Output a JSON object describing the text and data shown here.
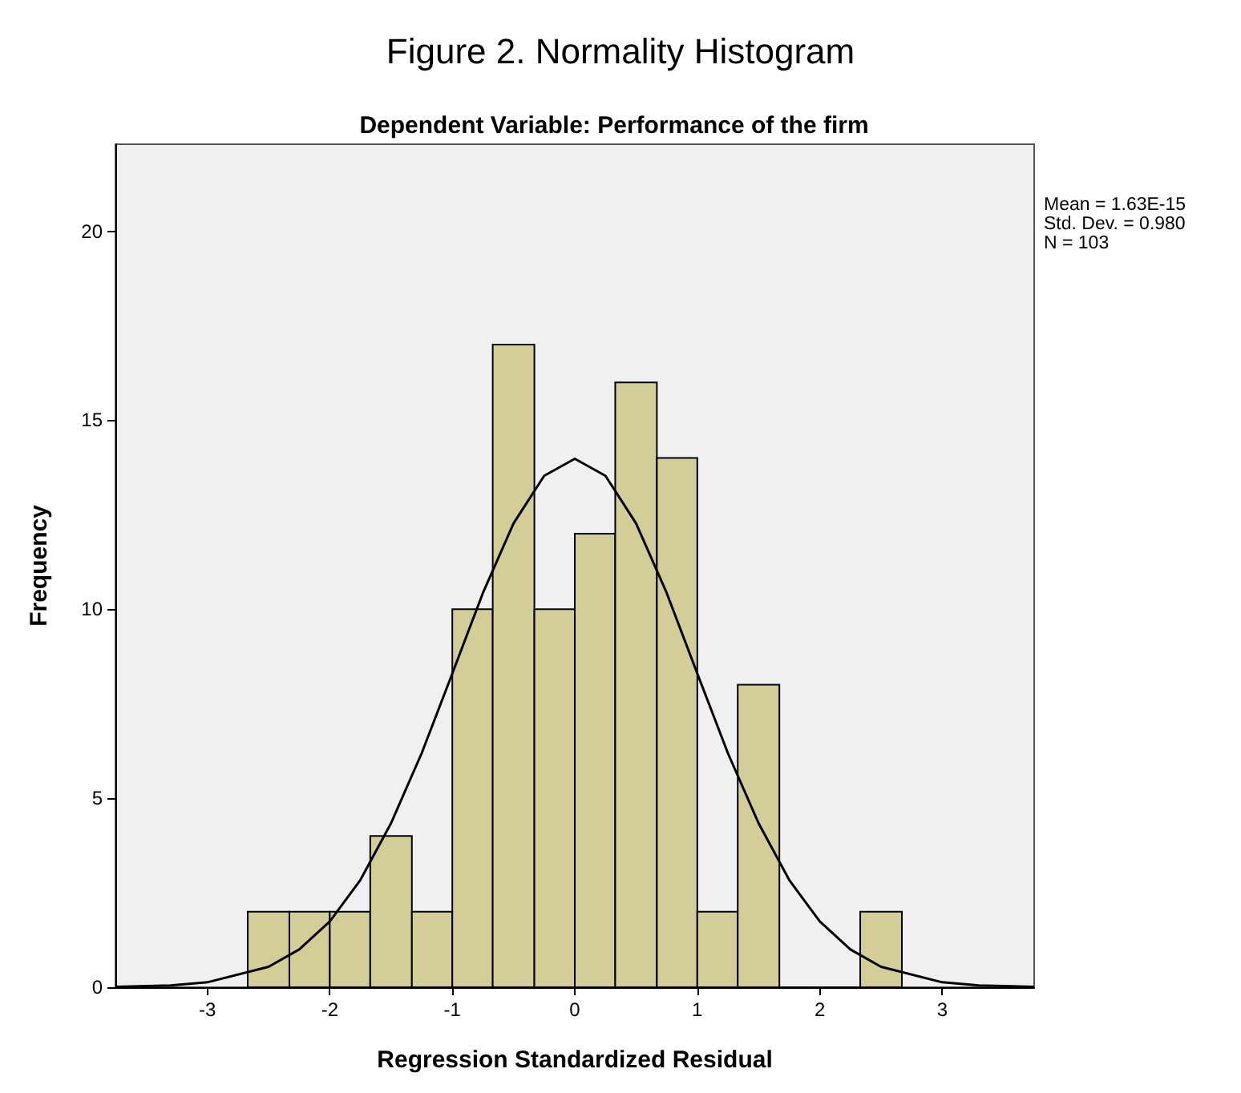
{
  "chart_data": {
    "type": "histogram",
    "title": "Figure 2. Normality Histogram",
    "subtitle": "Dependent Variable: Performance of the firm",
    "xlabel": "Regression Standardized Residual",
    "ylabel": "Frequency",
    "bins": [
      -2.67,
      -2.33,
      -2,
      -1.67,
      -1.33,
      -1,
      -0.67,
      -0.33,
      0,
      0.33,
      0.67,
      1,
      1.33,
      1.67,
      2.33,
      2.67
    ],
    "values": [
      2,
      2,
      2,
      4,
      2,
      10,
      17,
      10,
      12,
      16,
      14,
      2,
      8,
      0,
      2
    ],
    "color": "#d3ce97",
    "series": [
      {
        "type": "line",
        "color": "#000000",
        "x": [
          -3.75,
          -3.3,
          -3,
          -2.5,
          -2.25,
          -2,
          -1.75,
          -1.5,
          -1.25,
          -1,
          -0.75,
          -0.5,
          -0.25,
          0,
          0.25,
          0.5,
          0.75,
          1,
          1.25,
          1.5,
          1.75,
          2,
          2.25,
          2.5,
          3,
          3.3,
          3.75
        ],
        "values": [
          0.01,
          0.05,
          0.13,
          0.54,
          1,
          1.74,
          2.84,
          4.34,
          6.19,
          8.3,
          10.43,
          12.27,
          13.53,
          13.98,
          13.53,
          12.27,
          10.43,
          8.3,
          6.19,
          4.34,
          2.84,
          1.74,
          1,
          0.54,
          0.13,
          0.05,
          0.01
        ]
      }
    ],
    "annotations": [
      "Mean = 1.63E-15",
      "Std. Dev. = 0.980",
      "N = 103"
    ],
    "xlim": [
      -3.75,
      3.75
    ],
    "xticks": [
      -3,
      -2,
      -1,
      0,
      1,
      2,
      3
    ],
    "ylim": [
      0,
      22.3
    ],
    "yticks": [
      0,
      5,
      10,
      15,
      20
    ],
    "grid": false,
    "marker": "none",
    "line_style": "solid"
  }
}
